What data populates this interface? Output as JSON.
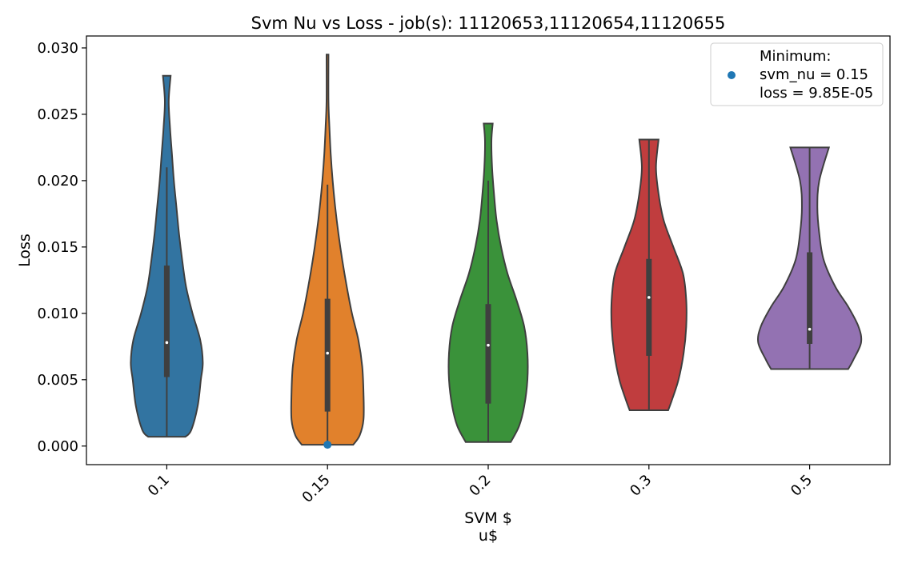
{
  "chart_data": {
    "type": "violin",
    "title": "Svm Nu vs Loss - job(s): 11120653,11120654,11120655",
    "xlabel_lines": [
      "SVM $",
      "u$"
    ],
    "ylabel": "Loss",
    "categories": [
      "0.1",
      "0.15",
      "0.2",
      "0.3",
      "0.5"
    ],
    "ylim": [
      -0.0014,
      0.0309
    ],
    "yticks": [
      0.0,
      0.005,
      0.01,
      0.015,
      0.02,
      0.025,
      0.03
    ],
    "ytick_labels": [
      "0.000",
      "0.005",
      "0.010",
      "0.015",
      "0.020",
      "0.025",
      "0.030"
    ],
    "grid": false,
    "colors": [
      "#3274a1",
      "#e1812c",
      "#3a923a",
      "#c03d3e",
      "#9372b2"
    ],
    "violins": [
      {
        "category": "0.1",
        "min": 0.0007,
        "max": 0.0279,
        "q1": 0.0052,
        "median": 0.0078,
        "q3": 0.0136,
        "whisker_low": 0.0007,
        "whisker_high": 0.021,
        "profile": [
          [
            0.0007,
            0.29
          ],
          [
            0.0012,
            0.38
          ],
          [
            0.003,
            0.48
          ],
          [
            0.005,
            0.53
          ],
          [
            0.0063,
            0.56
          ],
          [
            0.008,
            0.52
          ],
          [
            0.01,
            0.4
          ],
          [
            0.012,
            0.3
          ],
          [
            0.014,
            0.24
          ],
          [
            0.016,
            0.19
          ],
          [
            0.018,
            0.15
          ],
          [
            0.02,
            0.11
          ],
          [
            0.022,
            0.08
          ],
          [
            0.024,
            0.05
          ],
          [
            0.026,
            0.03
          ],
          [
            0.0279,
            0.06
          ]
        ]
      },
      {
        "category": "0.15",
        "min": 0.0001,
        "max": 0.0295,
        "q1": 0.0026,
        "median": 0.007,
        "q3": 0.0111,
        "whisker_low": 0.0001,
        "whisker_high": 0.0197,
        "profile": [
          [
            0.0001,
            0.4
          ],
          [
            0.0008,
            0.5
          ],
          [
            0.002,
            0.56
          ],
          [
            0.004,
            0.56
          ],
          [
            0.006,
            0.54
          ],
          [
            0.008,
            0.48
          ],
          [
            0.01,
            0.38
          ],
          [
            0.012,
            0.3
          ],
          [
            0.014,
            0.23
          ],
          [
            0.016,
            0.17
          ],
          [
            0.018,
            0.12
          ],
          [
            0.02,
            0.08
          ],
          [
            0.022,
            0.05
          ],
          [
            0.024,
            0.03
          ],
          [
            0.026,
            0.015
          ],
          [
            0.0295,
            0.015
          ]
        ]
      },
      {
        "category": "0.2",
        "min": 0.0003,
        "max": 0.0243,
        "q1": 0.0032,
        "median": 0.0076,
        "q3": 0.0107,
        "whisker_low": 0.0003,
        "whisker_high": 0.02,
        "profile": [
          [
            0.0003,
            0.35
          ],
          [
            0.0015,
            0.48
          ],
          [
            0.003,
            0.56
          ],
          [
            0.005,
            0.61
          ],
          [
            0.007,
            0.61
          ],
          [
            0.009,
            0.56
          ],
          [
            0.011,
            0.44
          ],
          [
            0.013,
            0.3
          ],
          [
            0.015,
            0.2
          ],
          [
            0.017,
            0.13
          ],
          [
            0.019,
            0.09
          ],
          [
            0.021,
            0.06
          ],
          [
            0.023,
            0.05
          ],
          [
            0.0243,
            0.07
          ]
        ]
      },
      {
        "category": "0.3",
        "min": 0.0027,
        "max": 0.0231,
        "q1": 0.0068,
        "median": 0.0112,
        "q3": 0.0141,
        "whisker_low": 0.0027,
        "whisker_high": 0.0231,
        "profile": [
          [
            0.0027,
            0.3
          ],
          [
            0.0035,
            0.36
          ],
          [
            0.005,
            0.46
          ],
          [
            0.007,
            0.54
          ],
          [
            0.009,
            0.58
          ],
          [
            0.011,
            0.58
          ],
          [
            0.013,
            0.53
          ],
          [
            0.015,
            0.38
          ],
          [
            0.017,
            0.23
          ],
          [
            0.019,
            0.15
          ],
          [
            0.021,
            0.11
          ],
          [
            0.0231,
            0.15
          ]
        ]
      },
      {
        "category": "0.5",
        "min": 0.0058,
        "max": 0.0225,
        "q1": 0.0077,
        "median": 0.0088,
        "q3": 0.0146,
        "whisker_low": 0.0058,
        "whisker_high": 0.0225,
        "profile": [
          [
            0.0058,
            0.6
          ],
          [
            0.0065,
            0.68
          ],
          [
            0.0078,
            0.8
          ],
          [
            0.009,
            0.76
          ],
          [
            0.0105,
            0.6
          ],
          [
            0.012,
            0.4
          ],
          [
            0.014,
            0.22
          ],
          [
            0.016,
            0.15
          ],
          [
            0.018,
            0.12
          ],
          [
            0.02,
            0.15
          ],
          [
            0.0225,
            0.3
          ]
        ]
      }
    ],
    "minimum_point": {
      "category": "0.15",
      "loss": 9.85e-05,
      "color": "#1f77b4"
    },
    "legend": {
      "position": "top-right",
      "lines": [
        "Minimum:",
        "svm_nu = 0.15",
        "loss = 9.85E-05"
      ]
    }
  }
}
